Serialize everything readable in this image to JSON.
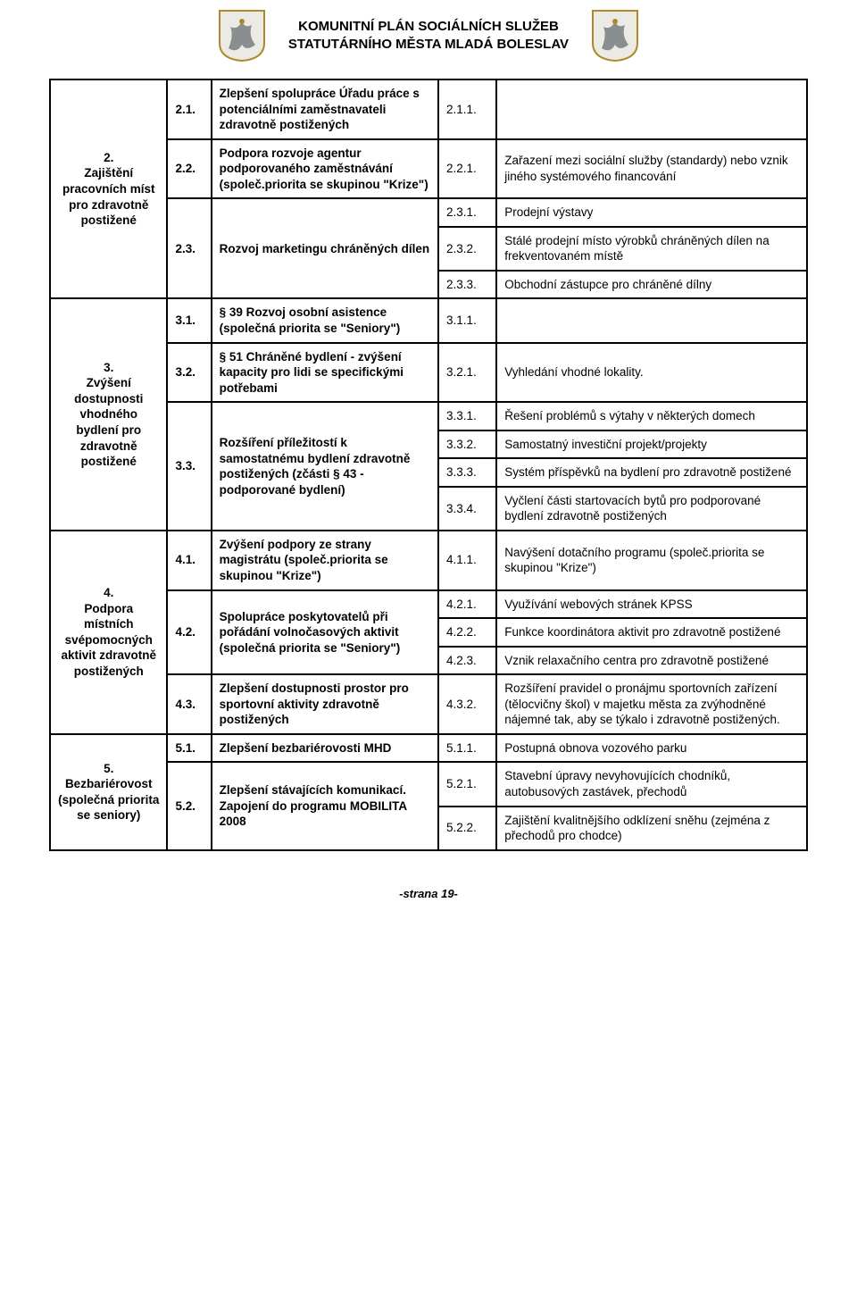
{
  "header": {
    "line1": "KOMUNITNÍ PLÁN SOCIÁLNÍCH SLUŽEB",
    "line2": "STATUTÁRNÍHO MĚSTA MLADÁ BOLESLAV"
  },
  "crest": {
    "outline_color": "#b08a2a",
    "lion_color": "#8a8e8f",
    "shield_bg": "#eceae4"
  },
  "footer": "-strana 19-",
  "table": {
    "border_color": "#000000",
    "font_size_pt": 10,
    "sections": [
      {
        "num": "2.",
        "title": "Zajištění pracovních míst pro zdravotně postižené",
        "opatreni": [
          {
            "num": "2.1.",
            "text": "Zlepšení spolupráce Úřadu práce s potenciálními zaměstnavateli zdravotně postižených",
            "akt": [
              {
                "num": "2.1.1.",
                "text": ""
              }
            ]
          },
          {
            "num": "2.2.",
            "text": "Podpora rozvoje agentur podporovaného zaměstnávání (společ.priorita se skupinou \"Krize\")",
            "akt": [
              {
                "num": "2.2.1.",
                "text": "Zařazení mezi sociální služby (standardy) nebo vznik jiného systémového financování"
              }
            ]
          },
          {
            "num": "2.3.",
            "text": "Rozvoj marketingu chráněných dílen",
            "akt": [
              {
                "num": "2.3.1.",
                "text": "Prodejní výstavy"
              },
              {
                "num": "2.3.2.",
                "text": "Stálé prodejní místo výrobků chráněných dílen na frekventovaném místě"
              },
              {
                "num": "2.3.3.",
                "text": "Obchodní zástupce pro chráněné dílny"
              }
            ]
          }
        ]
      },
      {
        "num": "3.",
        "title": "Zvýšení dostupnosti vhodného bydlení pro zdravotně postižené",
        "opatreni": [
          {
            "num": "3.1.",
            "text": "§ 39 Rozvoj osobní asistence (společná priorita se \"Seniory\")",
            "akt": [
              {
                "num": "3.1.1.",
                "text": ""
              }
            ]
          },
          {
            "num": "3.2.",
            "text": "§ 51 Chráněné bydlení - zvýšení kapacity pro lidi se specifickými potřebami",
            "akt": [
              {
                "num": "3.2.1.",
                "text": "Vyhledání vhodné lokality."
              }
            ]
          },
          {
            "num": "3.3.",
            "text": "Rozšíření příležitostí k samostatnému bydlení zdravotně postižených (zčásti § 43 - podporované bydlení)",
            "akt": [
              {
                "num": "3.3.1.",
                "text": "Řešení problémů s výtahy v některých domech"
              },
              {
                "num": "3.3.2.",
                "text": "Samostatný investiční projekt/projekty"
              },
              {
                "num": "3.3.3.",
                "text": "Systém příspěvků na bydlení pro zdravotně postižené"
              },
              {
                "num": "3.3.4.",
                "text": "Vyčlení části startovacích bytů pro podporované bydlení zdravotně postižených"
              }
            ]
          }
        ]
      },
      {
        "num": "4.",
        "title": "Podpora místních svépomocných aktivit zdravotně postižených",
        "opatreni": [
          {
            "num": "4.1.",
            "text": "Zvýšení podpory ze strany magistrátu (společ.priorita se skupinou \"Krize\")",
            "akt": [
              {
                "num": "4.1.1.",
                "text": "Navýšení dotačního programu (společ.priorita se skupinou \"Krize\")"
              }
            ]
          },
          {
            "num": "4.2.",
            "text": "Spolupráce poskytovatelů při pořádání volnočasových aktivit (společná priorita se \"Seniory\")",
            "akt": [
              {
                "num": "4.2.1.",
                "text": "Využívání webových stránek KPSS"
              },
              {
                "num": "4.2.2.",
                "text": "Funkce koordinátora aktivit pro zdravotně postižené"
              },
              {
                "num": "4.2.3.",
                "text": "Vznik relaxačního centra pro zdravotně postižené"
              }
            ]
          },
          {
            "num": "4.3.",
            "text": "Zlepšení dostupnosti prostor pro sportovní aktivity zdravotně postižených",
            "akt": [
              {
                "num": "4.3.2.",
                "text": "Rozšíření pravidel o pronájmu sportovních zařízení (tělocvičny škol) v majetku města za zvýhodněné nájemné tak, aby se týkalo i zdravotně postižených."
              }
            ]
          }
        ]
      },
      {
        "num": "5.",
        "title": "Bezbariérovost (společná priorita se seniory)",
        "opatreni": [
          {
            "num": "5.1.",
            "text": "Zlepšení bezbariérovosti MHD",
            "akt": [
              {
                "num": "5.1.1.",
                "text": "Postupná obnova vozového parku"
              }
            ]
          },
          {
            "num": "5.2.",
            "text": "Zlepšení stávajících komunikací. Zapojení do programu MOBILITA 2008",
            "akt": [
              {
                "num": "5.2.1.",
                "text": "Stavební úpravy nevyhovujících chodníků, autobusových zastávek, přechodů"
              },
              {
                "num": "5.2.2.",
                "text": "Zajištění kvalitnějšího odklízení sněhu (zejména z přechodů pro chodce)"
              }
            ]
          }
        ]
      }
    ]
  }
}
